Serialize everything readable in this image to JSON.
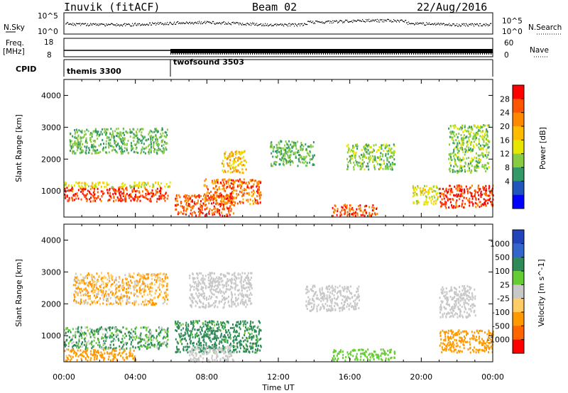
{
  "header": {
    "radar": "Inuvik (fitACF)",
    "beam": "Beam 02",
    "date": "22/Aug/2016"
  },
  "aux": {
    "nsky_label": "N.Sky",
    "nsky_ticks": [
      "10^5",
      "10^0"
    ],
    "nsearch_label": "N.Search",
    "nsearch_ticks": [
      "10^5",
      "10^0"
    ],
    "freq_label": "Freq.",
    "freq_unit": "[MHz]",
    "freq_ticks": [
      "18",
      "8"
    ],
    "nave_label": "Nave",
    "nave_ticks": [
      "60",
      "0"
    ],
    "cpid_label": "CPID",
    "cpid_modes": [
      {
        "name": "themis 3300",
        "start_hour": 0
      },
      {
        "name": "twofsound 3503",
        "start_hour": 6
      }
    ]
  },
  "chart_data": [
    {
      "type": "heatmap",
      "title": "",
      "xlabel": "",
      "ylabel": "Slant Range [km]",
      "xlim": [
        0,
        24
      ],
      "ylim": [
        180,
        4500
      ],
      "yticks": [
        1000,
        2000,
        3000,
        4000
      ],
      "colorbar": {
        "label": "Power [dB]",
        "ticks": [
          "28",
          "24",
          "20",
          "16",
          "12",
          "8",
          "4"
        ],
        "colors": [
          "#ff0000",
          "#ff5500",
          "#ff8800",
          "#ffbb00",
          "#e6e600",
          "#88cc44",
          "#339966",
          "#2255bb",
          "#0000ff"
        ]
      },
      "regions": [
        {
          "x": [
            0,
            5.8
          ],
          "y": [
            700,
            1150
          ],
          "value": 28
        },
        {
          "x": [
            0,
            6.0
          ],
          "y": [
            1150,
            1300
          ],
          "value": 14
        },
        {
          "x": [
            0.3,
            5.8
          ],
          "y": [
            2200,
            3000
          ],
          "value": 8
        },
        {
          "x": [
            6.2,
            9.5
          ],
          "y": [
            250,
            900
          ],
          "value": 26
        },
        {
          "x": [
            7.8,
            11.0
          ],
          "y": [
            600,
            1400
          ],
          "value": 24
        },
        {
          "x": [
            8.8,
            10.2
          ],
          "y": [
            1600,
            2300
          ],
          "value": 18
        },
        {
          "x": [
            11.5,
            14.0
          ],
          "y": [
            1800,
            2600
          ],
          "value": 8
        },
        {
          "x": [
            15.0,
            17.5
          ],
          "y": [
            250,
            600
          ],
          "value": 26
        },
        {
          "x": [
            15.8,
            18.5
          ],
          "y": [
            1700,
            2500
          ],
          "value": 10
        },
        {
          "x": [
            19.5,
            21.0
          ],
          "y": [
            600,
            1200
          ],
          "value": 14
        },
        {
          "x": [
            21.0,
            24.0
          ],
          "y": [
            500,
            1200
          ],
          "value": 28
        },
        {
          "x": [
            21.5,
            23.8
          ],
          "y": [
            1600,
            3100
          ],
          "value": 10
        }
      ]
    },
    {
      "type": "heatmap",
      "title": "",
      "xlabel": "Time UT",
      "ylabel": "Slant Range [km]",
      "xlim": [
        0,
        24
      ],
      "ylim": [
        180,
        4500
      ],
      "yticks": [
        1000,
        2000,
        3000,
        4000
      ],
      "xticks": [
        "00:00",
        "04:00",
        "08:00",
        "12:00",
        "16:00",
        "20:00",
        "00:00"
      ],
      "colorbar": {
        "label": "Velocity [m s^-1]",
        "ticks": [
          "1000",
          "500",
          "100",
          "25",
          "-25",
          "-100",
          "-500",
          "-1000"
        ],
        "colors": [
          "#2244bb",
          "#3366cc",
          "#2e8b57",
          "#66cc33",
          "#c8c8c8",
          "#ffcc66",
          "#ff9900",
          "#ff6600",
          "#ff0000"
        ]
      },
      "regions": [
        {
          "x": [
            0,
            5.8
          ],
          "y": [
            600,
            1300
          ],
          "value": 100
        },
        {
          "x": [
            0,
            4.0
          ],
          "y": [
            250,
            600
          ],
          "value": -200
        },
        {
          "x": [
            0.5,
            5.8
          ],
          "y": [
            2000,
            3000
          ],
          "value": -100
        },
        {
          "x": [
            6.2,
            11.0
          ],
          "y": [
            500,
            1500
          ],
          "value": 200
        },
        {
          "x": [
            7.0,
            9.5
          ],
          "y": [
            200,
            700
          ],
          "value": 0
        },
        {
          "x": [
            7.0,
            10.5
          ],
          "y": [
            1900,
            3000
          ],
          "value": 0
        },
        {
          "x": [
            13.5,
            16.5
          ],
          "y": [
            1800,
            2600
          ],
          "value": 0
        },
        {
          "x": [
            15.0,
            18.5
          ],
          "y": [
            250,
            600
          ],
          "value": 50
        },
        {
          "x": [
            21.0,
            24.0
          ],
          "y": [
            500,
            1200
          ],
          "value": -300
        },
        {
          "x": [
            21.0,
            23.0
          ],
          "y": [
            1600,
            2600
          ],
          "value": 0
        }
      ]
    }
  ]
}
